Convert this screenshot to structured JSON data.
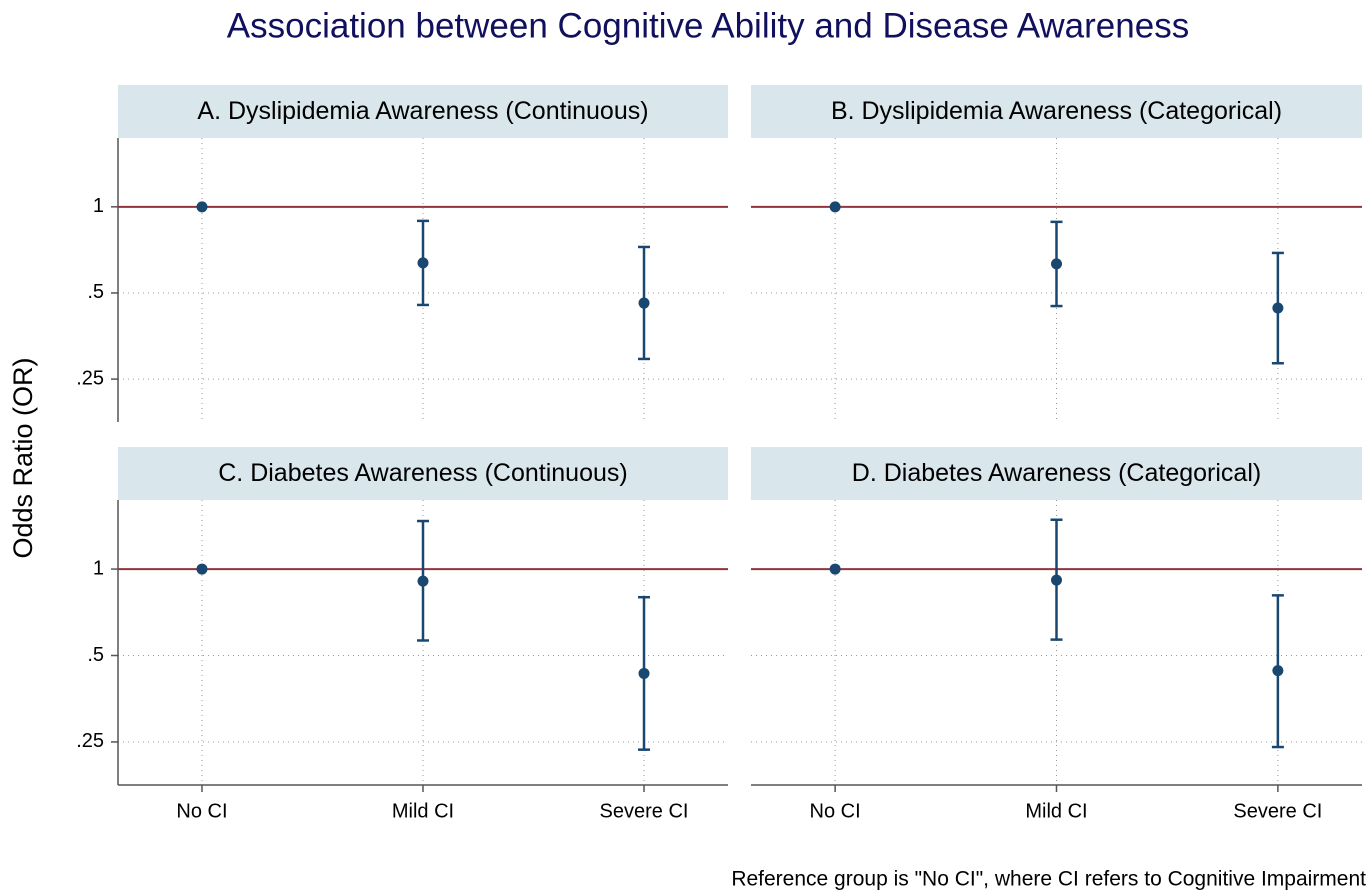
{
  "title": "Association between Cognitive Ability and Disease Awareness",
  "y_label": "Odds Ratio (OR)",
  "note": "Reference group is \"No CI\", where CI refers to Cognitive Impairment",
  "chart_data": [
    {
      "type": "errorbar",
      "title": "A. Dyslipidemia Awareness (Continuous)",
      "values": [
        1,
        0.637,
        0.461
      ],
      "ci_lower": [
        null,
        0.454,
        0.294
      ],
      "ci_upper": [
        null,
        0.893,
        0.724
      ],
      "ylim": [
        0.177,
        1.74
      ],
      "yticks": [
        {
          "value": 0.25,
          "label": ".25"
        },
        {
          "value": 0.5,
          "label": ".5"
        },
        1
      ],
      "log_scale": true,
      "reference_line": 1,
      "color": "#1a476f",
      "reference_color": "#90353b",
      "grid": true
    },
    {
      "type": "errorbar",
      "title": "B. Dyslipidemia Awareness (Categorical)",
      "values": [
        1,
        0.632,
        0.443
      ],
      "ci_lower": [
        null,
        0.45,
        0.284
      ],
      "ci_upper": [
        null,
        0.886,
        0.69
      ],
      "ylim": [
        0.177,
        1.74
      ],
      "yticks": [
        0.25,
        0.5,
        1
      ],
      "log_scale": true,
      "reference_line": 1,
      "color": "#1a476f",
      "reference_color": "#90353b",
      "grid": true
    },
    {
      "type": "errorbar",
      "title": "C. Diabetes Awareness (Continuous)",
      "categories": [
        "No CI",
        "Mild CI",
        "Severe CI"
      ],
      "values": [
        1,
        0.908,
        0.433
      ],
      "ci_lower": [
        null,
        0.564,
        0.235
      ],
      "ci_upper": [
        null,
        1.47,
        0.798
      ],
      "ylim": [
        0.177,
        1.74
      ],
      "yticks": [
        {
          "value": 0.25,
          "label": ".25"
        },
        {
          "value": 0.5,
          "label": ".5"
        },
        1
      ],
      "log_scale": true,
      "reference_line": 1,
      "color": "#1a476f",
      "reference_color": "#90353b",
      "grid": true
    },
    {
      "type": "errorbar",
      "title": "D. Diabetes Awareness (Categorical)",
      "categories": [
        "No CI",
        "Mild CI",
        "Severe CI"
      ],
      "values": [
        1,
        0.915,
        0.443
      ],
      "ci_lower": [
        null,
        0.568,
        0.24
      ],
      "ci_upper": [
        null,
        1.485,
        0.81
      ],
      "ylim": [
        0.177,
        1.74
      ],
      "yticks": [
        0.25,
        0.5,
        1
      ],
      "log_scale": true,
      "reference_line": 1,
      "color": "#1a476f",
      "reference_color": "#90353b",
      "grid": true
    }
  ]
}
